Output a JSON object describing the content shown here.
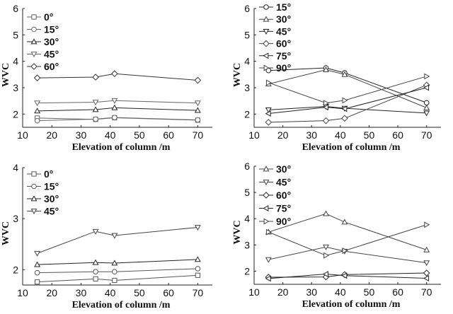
{
  "chart_data": [
    {
      "type": "line",
      "xlabel": "Elevation of column /m",
      "ylabel": "WVC",
      "xlim": [
        10,
        75
      ],
      "ylim": [
        1.5,
        6
      ],
      "xticks": [
        10,
        20,
        30,
        40,
        50,
        60,
        70
      ],
      "yticks": [
        2,
        3,
        4,
        5,
        6
      ],
      "legend_position": "top-left",
      "x": [
        15,
        35,
        41.5,
        70
      ],
      "series": [
        {
          "name": "0°",
          "marker": "square",
          "color": "#666666",
          "values": [
            1.85,
            1.8,
            1.86,
            1.77
          ]
        },
        {
          "name": "15°",
          "marker": "circle",
          "color": "#666666",
          "values": [
            1.75,
            1.81,
            1.87,
            1.78
          ]
        },
        {
          "name": "30°",
          "marker": "triangle-up",
          "color": "#222222",
          "values": [
            2.12,
            2.17,
            2.24,
            2.14
          ]
        },
        {
          "name": "45°",
          "marker": "triangle-down",
          "color": "#666666",
          "values": [
            2.42,
            2.45,
            2.51,
            2.42
          ]
        },
        {
          "name": "60°",
          "marker": "diamond",
          "color": "#333333",
          "values": [
            3.37,
            3.4,
            3.53,
            3.28
          ]
        }
      ]
    },
    {
      "type": "line",
      "xlabel": "Elevation of column /m",
      "ylabel": "WVC",
      "xlim": [
        10,
        75
      ],
      "ylim": [
        1.5,
        6
      ],
      "xticks": [
        10,
        20,
        30,
        40,
        50,
        60,
        70
      ],
      "yticks": [
        2,
        3,
        4,
        5,
        6
      ],
      "legend_position": "top-left",
      "x": [
        15,
        35,
        41.5,
        70
      ],
      "series": [
        {
          "name": "15°",
          "marker": "circle",
          "color": "#222222",
          "values": [
            3.65,
            3.75,
            3.56,
            2.43
          ]
        },
        {
          "name": "30°",
          "marker": "triangle-up",
          "color": "#444444",
          "values": [
            3.14,
            3.68,
            3.5,
            2.24
          ]
        },
        {
          "name": "45°",
          "marker": "triangle-down",
          "color": "#222222",
          "values": [
            2.16,
            2.29,
            2.22,
            2.04
          ]
        },
        {
          "name": "60°",
          "marker": "diamond",
          "color": "#444444",
          "values": [
            1.69,
            1.75,
            1.84,
            3.1
          ]
        },
        {
          "name": "75°",
          "marker": "triangle-left",
          "color": "#222222",
          "values": [
            2.02,
            2.26,
            2.2,
            3.0
          ]
        },
        {
          "name": "90°",
          "marker": "triangle-right",
          "color": "#444444",
          "values": [
            3.19,
            2.42,
            2.52,
            3.43
          ]
        }
      ]
    },
    {
      "type": "line",
      "xlabel": "Elevation of column /m",
      "ylabel": "WVC",
      "xlim": [
        10,
        75
      ],
      "ylim": [
        1.7,
        4
      ],
      "xticks": [
        10,
        20,
        30,
        40,
        50,
        60,
        70
      ],
      "yticks": [
        2,
        3,
        4
      ],
      "legend_position": "top-left",
      "x": [
        15,
        35,
        41.5,
        70
      ],
      "series": [
        {
          "name": "0°",
          "marker": "square",
          "color": "#555555",
          "values": [
            1.76,
            1.82,
            1.79,
            1.89
          ]
        },
        {
          "name": "15°",
          "marker": "circle",
          "color": "#555555",
          "values": [
            1.94,
            1.96,
            1.96,
            2.02
          ]
        },
        {
          "name": "30°",
          "marker": "triangle-up",
          "color": "#222222",
          "values": [
            2.1,
            2.14,
            2.13,
            2.2
          ]
        },
        {
          "name": "45°",
          "marker": "triangle-down",
          "color": "#444444",
          "values": [
            2.32,
            2.75,
            2.67,
            2.83
          ]
        }
      ]
    },
    {
      "type": "line",
      "xlabel": "Elevation of column /m",
      "ylabel": "WVC",
      "xlim": [
        10,
        75
      ],
      "ylim": [
        1.5,
        6
      ],
      "xticks": [
        10,
        20,
        30,
        40,
        50,
        60,
        70
      ],
      "yticks": [
        2,
        3,
        4,
        5,
        6
      ],
      "legend_position": "top-left",
      "x": [
        15,
        35,
        41.5,
        70
      ],
      "series": [
        {
          "name": "30°",
          "marker": "triangle-up",
          "color": "#444444",
          "values": [
            3.49,
            4.19,
            3.87,
            2.81
          ]
        },
        {
          "name": "45°",
          "marker": "triangle-down",
          "color": "#444444",
          "values": [
            2.44,
            2.92,
            2.76,
            2.32
          ]
        },
        {
          "name": "60°",
          "marker": "diamond",
          "color": "#222222",
          "values": [
            1.77,
            1.78,
            1.87,
            1.93
          ]
        },
        {
          "name": "75°",
          "marker": "triangle-left",
          "color": "#222222",
          "values": [
            1.72,
            1.89,
            1.83,
            1.73
          ]
        },
        {
          "name": "90°",
          "marker": "triangle-right",
          "color": "#444444",
          "values": [
            3.49,
            2.6,
            2.78,
            3.77
          ]
        }
      ]
    }
  ]
}
